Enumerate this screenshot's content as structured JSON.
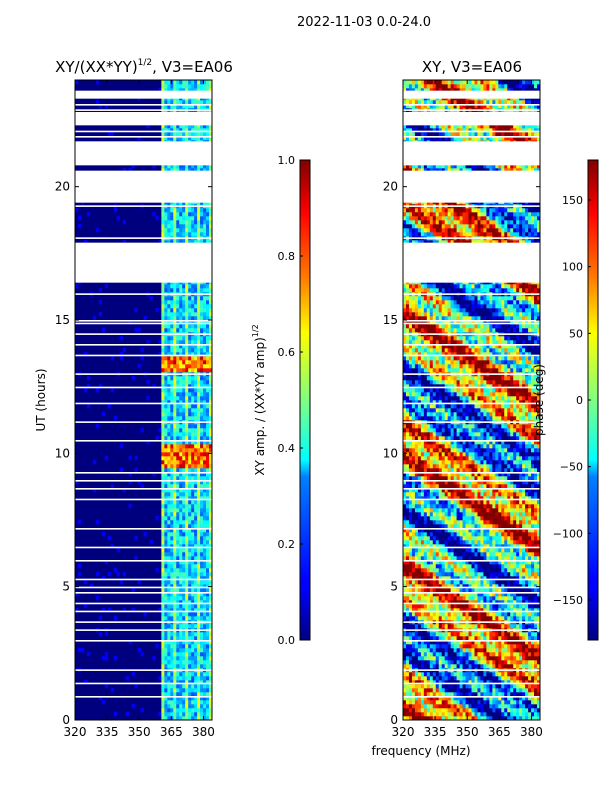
{
  "figure_title": "2022-11-03 0.0-24.0",
  "colors": {
    "background": "#ffffff",
    "axis": "#000000",
    "gap": "#ffffff",
    "deep_blue": "#00007f"
  },
  "chart_data": [
    {
      "type": "heatmap",
      "title_main": "XY/(XX*YY)",
      "title_sup": "1/2",
      "title_suffix": ", V3=EA06",
      "xlabel": "",
      "ylabel": "UT (hours)",
      "xlim": [
        320,
        384
      ],
      "ylim": [
        0,
        24
      ],
      "xticks": [
        320,
        335,
        350,
        365,
        380
      ],
      "yticks": [
        0,
        5,
        10,
        15,
        20
      ],
      "colormap": "jet",
      "colorbar": {
        "label_main": "XY amp. / (XX*YY amp)",
        "label_sup": "1/2",
        "range": [
          0.0,
          1.0
        ],
        "ticks": [
          "0.0",
          "0.2",
          "0.4",
          "0.6",
          "0.8",
          "1.0"
        ],
        "tick_values": [
          0.0,
          0.2,
          0.4,
          0.6,
          0.8,
          1.0
        ]
      },
      "flagged_ut_intervals": [
        [
          16.4,
          17.9
        ],
        [
          19.4,
          20.6
        ],
        [
          20.8,
          21.7
        ],
        [
          22.3,
          22.8
        ],
        [
          23.3,
          23.6
        ]
      ],
      "bright_band_mhz": [
        361,
        383
      ],
      "strong_ut_intervals": [
        [
          9.4,
          10.4
        ],
        [
          13.0,
          13.6
        ]
      ]
    },
    {
      "type": "heatmap",
      "title_main": "XY, V3=EA06",
      "xlabel": "frequency (MHz)",
      "ylabel": "",
      "xlim": [
        320,
        384
      ],
      "ylim": [
        0,
        24
      ],
      "xticks": [
        320,
        335,
        350,
        365,
        380
      ],
      "yticks": [
        0,
        5,
        10,
        15,
        20
      ],
      "colormap": "jet",
      "colorbar": {
        "label": "phase (deg)",
        "range": [
          -180,
          180
        ],
        "ticks": [
          "150",
          "100",
          "50",
          "0",
          "−50",
          "−100",
          "−150"
        ],
        "tick_values": [
          150,
          100,
          50,
          0,
          -50,
          -100,
          -150
        ]
      },
      "flagged_ut_intervals": [
        [
          16.4,
          17.9
        ],
        [
          19.4,
          20.6
        ],
        [
          20.8,
          21.7
        ],
        [
          22.3,
          22.8
        ],
        [
          23.3,
          23.6
        ]
      ]
    }
  ]
}
